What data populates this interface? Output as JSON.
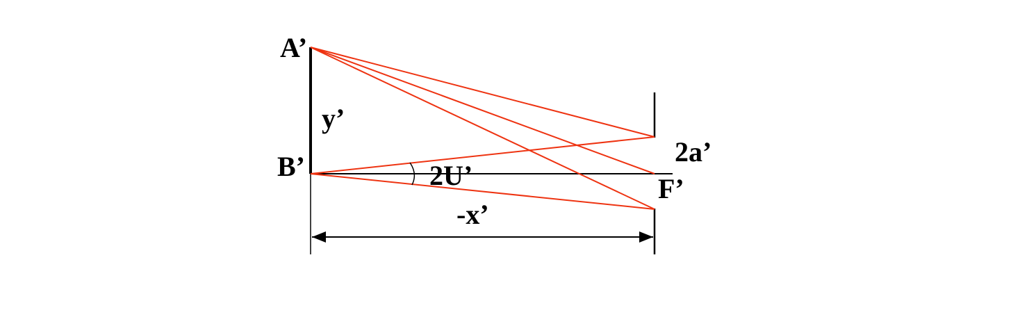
{
  "labels": {
    "a_prime": "A’",
    "b_prime": "B’",
    "y_prime": "y’",
    "two_a_prime": "2a’",
    "two_u_prime": "2U’",
    "f_prime": "F’",
    "neg_x_prime": "-x’"
  },
  "colors": {
    "ray": "#ee3311",
    "line": "#000000",
    "background": "#ffffff"
  }
}
